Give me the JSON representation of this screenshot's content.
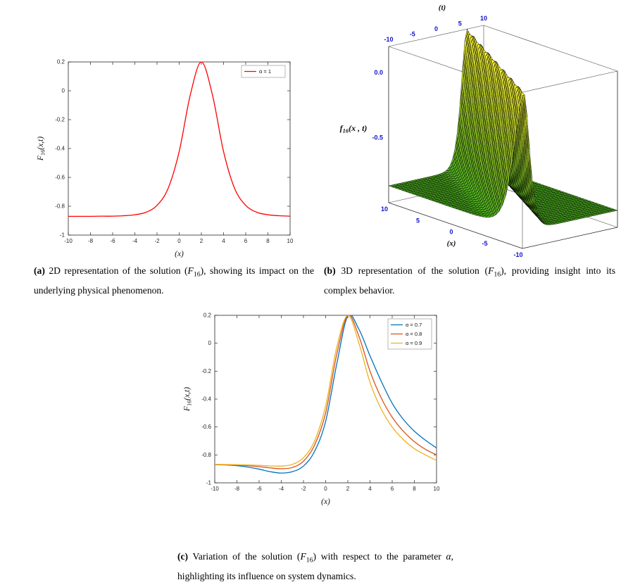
{
  "page": {
    "background": "#ffffff"
  },
  "colors": {
    "red": "#ff0000",
    "matlab_blue": "#0072BD",
    "matlab_orange": "#D95319",
    "matlab_yellow": "#EDB120",
    "tick_label": "#262626",
    "frame": "#262626",
    "blue_3d_tick": "#1111cc",
    "surface_low": "#4db320",
    "surface_high": "#ffee35"
  },
  "chart_data": [
    {
      "id": "a",
      "type": "line",
      "xlabel": "(x)",
      "ylabel": {
        "main": "F",
        "sub": "16",
        "rest": "(x,t)"
      },
      "xlim": [
        -10,
        10
      ],
      "ylim": [
        -1,
        0.2
      ],
      "xticks": [
        -10,
        -8,
        -6,
        -4,
        -2,
        0,
        2,
        4,
        6,
        8,
        10
      ],
      "xtick_labels": [
        "-10",
        "-8",
        "-6",
        "-4",
        "-2",
        "0",
        "2",
        "4",
        "6",
        "8",
        "10"
      ],
      "yticks": [
        0.2,
        0,
        -0.2,
        -0.4,
        -0.6,
        -0.8,
        -1
      ],
      "ytick_labels": [
        "0.2",
        "0",
        "-0.2",
        "-0.4",
        "-0.6",
        "-0.8",
        "-1"
      ],
      "grid": false,
      "legend_position": "northeast",
      "x": [
        -10,
        -9,
        -8,
        -7,
        -6,
        -5,
        -4,
        -3,
        -2,
        -1,
        0,
        1,
        2,
        3,
        4,
        5,
        6,
        7,
        8,
        9,
        10
      ],
      "series": [
        {
          "name": "α = 1",
          "color": "#ff0000",
          "values": [
            -0.87,
            -0.87,
            -0.87,
            -0.869,
            -0.869,
            -0.866,
            -0.859,
            -0.842,
            -0.794,
            -0.677,
            -0.421,
            -0.029,
            0.2,
            -0.029,
            -0.421,
            -0.677,
            -0.794,
            -0.842,
            -0.859,
            -0.866,
            -0.869
          ]
        }
      ]
    },
    {
      "id": "b",
      "type": "surface",
      "xlabel": "(x)",
      "tlabel": "(t)",
      "zlabel": {
        "main": "f",
        "sub": "16",
        "rest": "(x , t)"
      },
      "x_range": [
        -10,
        10
      ],
      "t_range": [
        -10,
        10
      ],
      "z_range": [
        -1,
        0.2
      ],
      "x_tick_values": [
        10,
        5,
        0,
        -5,
        -10
      ],
      "x_tick_labels": [
        "10",
        "5",
        "0",
        "-5",
        "-10"
      ],
      "t_tick_values": [
        -10,
        -5,
        0,
        5,
        10
      ],
      "t_tick_labels": [
        "-10",
        "-5",
        "0",
        "5",
        "10"
      ],
      "z_tick_values": [
        0,
        -0.5
      ],
      "z_tick_labels": [
        "0.0",
        "-0.5"
      ],
      "surface": {
        "base": -0.87,
        "amplitude": 1.07,
        "width": 0.5,
        "wave_speed": 1.23,
        "peak_offset": 2,
        "formula": "f16(x,t) = -0.87 + 1.07*sech^2(0.5*(x - 1.23*t - 2))"
      },
      "tick_color": "#1111cc"
    },
    {
      "id": "c",
      "type": "line",
      "xlabel": "(x)",
      "ylabel": {
        "main": "F",
        "sub": "16",
        "rest": "(x,t)"
      },
      "xlim": [
        -10,
        10
      ],
      "ylim": [
        -1,
        0.2
      ],
      "xticks": [
        -10,
        -8,
        -6,
        -4,
        -2,
        0,
        2,
        4,
        6,
        8,
        10
      ],
      "xtick_labels": [
        "-10",
        "-8",
        "-6",
        "-4",
        "-2",
        "0",
        "2",
        "4",
        "6",
        "8",
        "10"
      ],
      "yticks": [
        0.2,
        0,
        -0.2,
        -0.4,
        -0.6,
        -0.8,
        -1
      ],
      "ytick_labels": [
        "0.2",
        "0",
        "-0.2",
        "-0.4",
        "-0.6",
        "-0.8",
        "-1"
      ],
      "grid": false,
      "legend_position": "northeast",
      "x": [
        -10,
        -9,
        -8,
        -7,
        -6,
        -5,
        -4,
        -3,
        -2,
        -1,
        0,
        1,
        2,
        3,
        4,
        5,
        6,
        7,
        8,
        9,
        10
      ],
      "series": [
        {
          "name": "α = 0.7",
          "color": "#0072BD",
          "values": [
            -0.87,
            -0.872,
            -0.877,
            -0.887,
            -0.902,
            -0.92,
            -0.93,
            -0.92,
            -0.88,
            -0.775,
            -0.56,
            -0.15,
            0.195,
            0.1,
            -0.09,
            -0.27,
            -0.43,
            -0.545,
            -0.63,
            -0.695,
            -0.75
          ]
        },
        {
          "name": "α = 0.8",
          "color": "#D95319",
          "values": [
            -0.87,
            -0.871,
            -0.873,
            -0.877,
            -0.884,
            -0.893,
            -0.899,
            -0.89,
            -0.845,
            -0.73,
            -0.5,
            -0.08,
            0.2,
            0.05,
            -0.2,
            -0.39,
            -0.53,
            -0.63,
            -0.705,
            -0.76,
            -0.8
          ]
        },
        {
          "name": "α = 0.9",
          "color": "#EDB120",
          "values": [
            -0.868,
            -0.869,
            -0.87,
            -0.872,
            -0.875,
            -0.879,
            -0.88,
            -0.868,
            -0.82,
            -0.7,
            -0.45,
            -0.03,
            0.2,
            0.0,
            -0.28,
            -0.47,
            -0.6,
            -0.69,
            -0.755,
            -0.8,
            -0.84
          ]
        }
      ]
    }
  ],
  "captions": [
    {
      "name": "caption-a",
      "segments": [
        {
          "text": "(a)",
          "bold": true
        },
        {
          "text": " 2D representation of the solution ("
        },
        {
          "text": "F",
          "italic": true
        },
        {
          "text": "16",
          "sub": true
        },
        {
          "text": "), showing its impact on the underlying physical phenomenon."
        }
      ]
    },
    {
      "name": "caption-b",
      "segments": [
        {
          "text": "(b)",
          "bold": true
        },
        {
          "text": " 3D representation of the solution ("
        },
        {
          "text": "F",
          "italic": true
        },
        {
          "text": "16",
          "sub": true
        },
        {
          "text": "), providing insight into its complex behavior."
        }
      ]
    },
    {
      "name": "caption-c",
      "segments": [
        {
          "text": "(c)",
          "bold": true
        },
        {
          "text": " Variation of the solution ("
        },
        {
          "text": "F",
          "italic": true
        },
        {
          "text": "16",
          "sub": true
        },
        {
          "text": ") with respect to the parameter "
        },
        {
          "text": "α",
          "italic": true
        },
        {
          "text": ", highlighting its influence on system dynamics."
        }
      ]
    }
  ]
}
